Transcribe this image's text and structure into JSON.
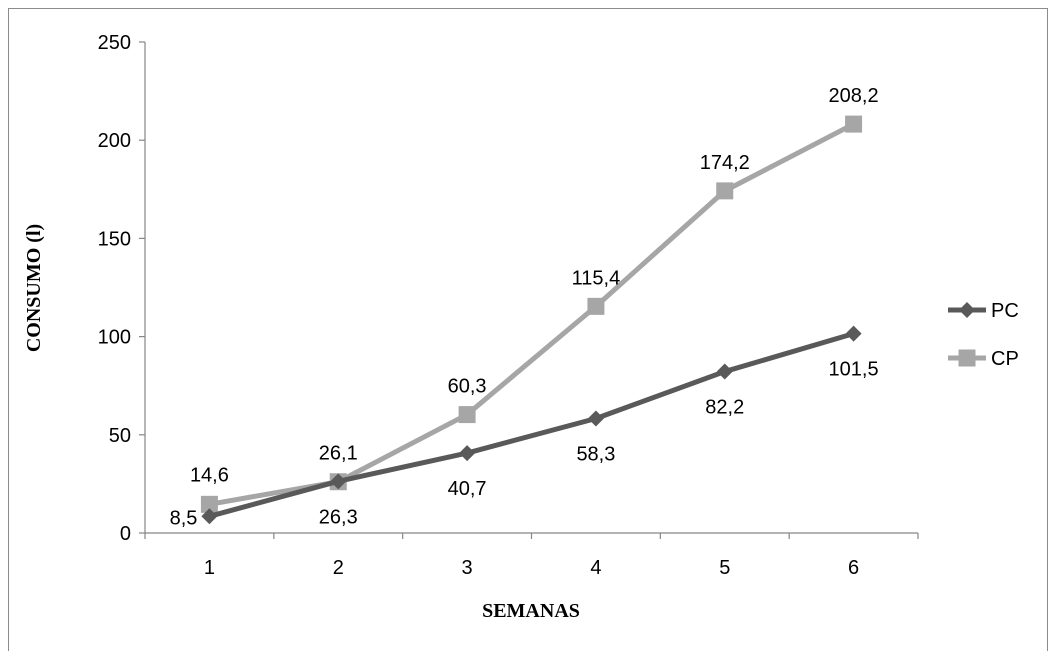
{
  "chart_data": {
    "type": "line",
    "categories": [
      "1",
      "2",
      "3",
      "4",
      "5",
      "6"
    ],
    "xlabel": "SEMANAS",
    "ylabel": "CONSUMO (l)",
    "ylim": [
      0,
      250
    ],
    "yticks": [
      "0",
      "50",
      "100",
      "150",
      "200",
      "250"
    ],
    "grid": false,
    "legend_position": "right",
    "series": [
      {
        "name": "PC",
        "color": "#595959",
        "marker": "diamond",
        "values": [
          8.5,
          26.3,
          40.7,
          58.3,
          82.2,
          101.5
        ],
        "labels": [
          "8,5",
          "26,3",
          "40,7",
          "58,3",
          "82,2",
          "101,5"
        ],
        "label_position": "below"
      },
      {
        "name": "CP",
        "color": "#a6a6a6",
        "marker": "square",
        "values": [
          14.6,
          26.1,
          60.3,
          115.4,
          174.2,
          208.2
        ],
        "labels": [
          "14,6",
          "26,1",
          "60,3",
          "115,4",
          "174,2",
          "208,2"
        ],
        "label_position": "above"
      }
    ]
  }
}
